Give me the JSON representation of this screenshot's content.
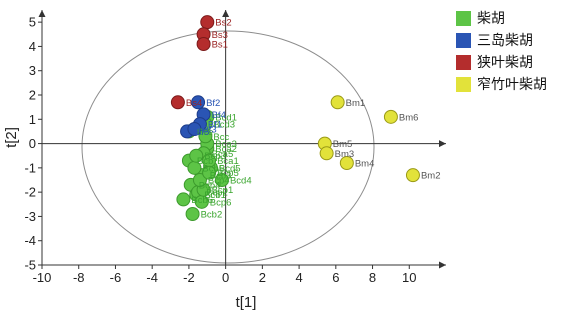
{
  "chart_data": {
    "type": "scatter",
    "xlabel": "t[1]",
    "ylabel": "t[2]",
    "xlim": [
      -10,
      12
    ],
    "ylim": [
      -5,
      5.5
    ],
    "xticks": [
      "-10",
      "-8",
      "-6",
      "-4",
      "-2",
      "0",
      "2",
      "4",
      "6",
      "8",
      "10"
    ],
    "yticks": [
      "-5",
      "-4",
      "-3",
      "-2",
      "-1",
      "0",
      "1",
      "2",
      "3",
      "4",
      "5"
    ],
    "grid": false,
    "confidence_ellipse": true,
    "legend_position": "top-right",
    "series": [
      {
        "name": "柴胡",
        "color": "#5dc446",
        "points": [
          {
            "label": "Bcd1",
            "x": -1.0,
            "y": 1.1
          },
          {
            "label": "Bcd3",
            "x": -1.1,
            "y": 0.8
          },
          {
            "label": "Bce",
            "x": -2.0,
            "y": 0.5
          },
          {
            "label": "Bca2",
            "x": -1.0,
            "y": -0.2
          },
          {
            "label": "Bca3",
            "x": -1.0,
            "y": 0.0
          },
          {
            "label": "Bca5",
            "x": -1.2,
            "y": -0.4
          },
          {
            "label": "Bcb",
            "x": -2.0,
            "y": -0.7
          },
          {
            "label": "Bcd5",
            "x": -0.8,
            "y": -1.0
          },
          {
            "label": "Bcd4",
            "x": -0.2,
            "y": -1.5
          },
          {
            "label": "Bcb4",
            "x": -1.9,
            "y": -1.7
          },
          {
            "label": "Bcb1",
            "x": -1.6,
            "y": -2.1
          },
          {
            "label": "Bcb6",
            "x": -2.3,
            "y": -2.3
          },
          {
            "label": "Bcb2",
            "x": -1.8,
            "y": -2.9
          },
          {
            "label": "Bcp2",
            "x": -1.5,
            "y": -2.0
          },
          {
            "label": "Bcp6",
            "x": -1.3,
            "y": -2.4
          },
          {
            "label": "Bca1",
            "x": -0.9,
            "y": -0.7
          },
          {
            "label": "Bcb3",
            "x": -1.3,
            "y": -1.3
          },
          {
            "label": "Bcb5",
            "x": -1.7,
            "y": -1.0
          },
          {
            "label": "Bcp1",
            "x": -1.2,
            "y": -1.9
          },
          {
            "label": "Bcp3",
            "x": -1.6,
            "y": -0.5
          },
          {
            "label": "Bcc",
            "x": -1.1,
            "y": 0.3
          },
          {
            "label": "Bcp4",
            "x": -1.4,
            "y": -1.5
          },
          {
            "label": "Bcp5",
            "x": -0.9,
            "y": -1.2
          }
        ]
      },
      {
        "name": "三岛柴胡",
        "color": "#2a55b4",
        "points": [
          {
            "label": "Bf2",
            "x": -1.5,
            "y": 1.7
          },
          {
            "label": "Bf4",
            "x": -1.2,
            "y": 1.2
          },
          {
            "label": "Bf5",
            "x": -2.1,
            "y": 0.5
          },
          {
            "label": "Bf1",
            "x": -1.4,
            "y": 0.8
          },
          {
            "label": "Bf3",
            "x": -1.7,
            "y": 0.6
          }
        ]
      },
      {
        "name": "狭叶柴胡",
        "color": "#b42d2d",
        "points": [
          {
            "label": "Bs2",
            "x": -1.0,
            "y": 5.0
          },
          {
            "label": "Bs3",
            "x": -1.2,
            "y": 4.5
          },
          {
            "label": "Bs1",
            "x": -1.2,
            "y": 4.1
          },
          {
            "label": "Bs4",
            "x": -2.6,
            "y": 1.7
          }
        ]
      },
      {
        "name": "窄竹叶柴胡",
        "color": "#e2e23a",
        "points": [
          {
            "label": "Bm1",
            "x": 6.1,
            "y": 1.7
          },
          {
            "label": "Bm6",
            "x": 9.0,
            "y": 1.1
          },
          {
            "label": "Bm5",
            "x": 5.4,
            "y": 0.0
          },
          {
            "label": "Bm3",
            "x": 5.5,
            "y": -0.4
          },
          {
            "label": "Bm4",
            "x": 6.6,
            "y": -0.8
          },
          {
            "label": "Bm2",
            "x": 10.2,
            "y": -1.3
          }
        ]
      }
    ]
  }
}
